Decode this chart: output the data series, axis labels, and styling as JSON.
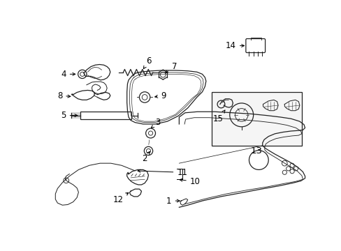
{
  "bg_color": "#ffffff",
  "line_color": "#222222",
  "label_color": "#000000",
  "figure_width": 4.89,
  "figure_height": 3.6,
  "dpi": 100
}
